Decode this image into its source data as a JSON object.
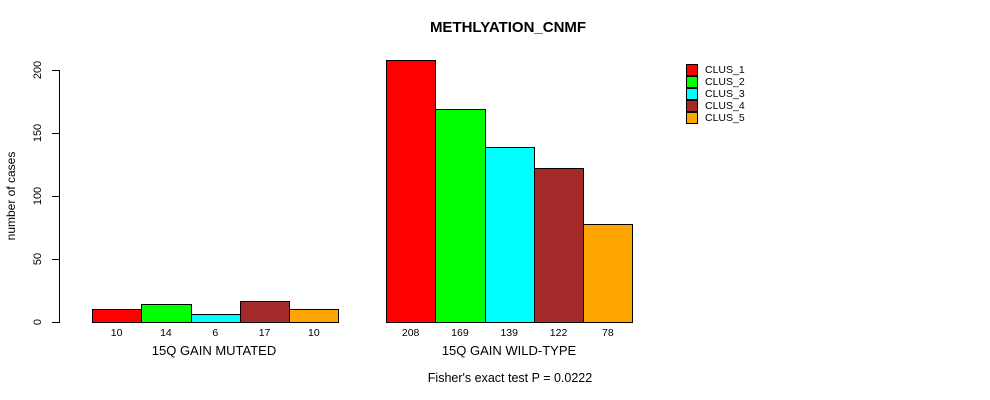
{
  "chart_data": {
    "type": "bar",
    "title": "METHLYATION_CNMF",
    "ylabel": "number of cases",
    "xlabel": "",
    "ylim": [
      0,
      215
    ],
    "yticks": [
      0,
      50,
      100,
      150,
      200
    ],
    "grid": false,
    "legend_position": "top-right",
    "series_names": [
      "CLUS_1",
      "CLUS_2",
      "CLUS_3",
      "CLUS_4",
      "CLUS_5"
    ],
    "series_colors": [
      "#FF0000",
      "#00FF00",
      "#00FFFF",
      "#A52A2A",
      "#FFA500"
    ],
    "groups": [
      {
        "label": "15Q GAIN MUTATED",
        "values": [
          10,
          14,
          6,
          17,
          10
        ]
      },
      {
        "label": "15Q GAIN WILD-TYPE",
        "values": [
          208,
          169,
          139,
          122,
          78
        ]
      }
    ],
    "bar_value_labels_shown": true,
    "annotation": "Fisher's exact test P = 0.0222"
  }
}
